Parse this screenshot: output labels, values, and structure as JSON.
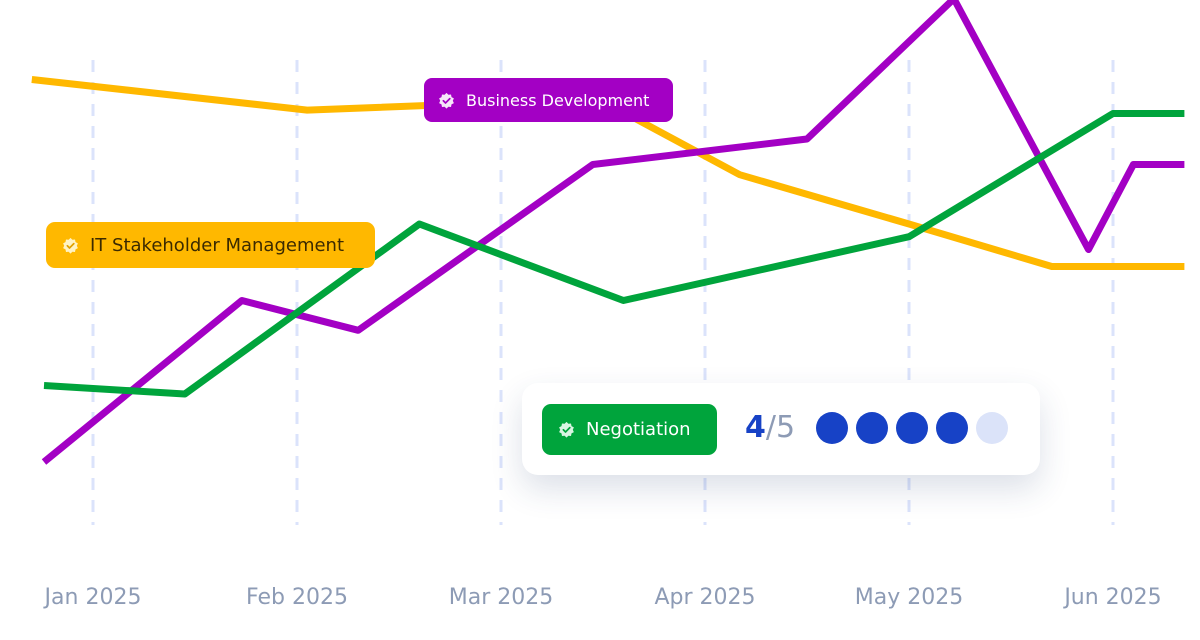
{
  "chart_data": {
    "type": "line",
    "x": [
      "Jan 2025",
      "Feb 2025",
      "Mar 2025",
      "Apr 2025",
      "May 2025",
      "Jun 2025"
    ],
    "title": "",
    "xlabel": "",
    "ylabel": "",
    "grid": "vertical-dashed",
    "series": [
      {
        "name": "IT Stakeholder Management",
        "color": "#ffb800",
        "points": [
          [
            -0.3,
            4.3
          ],
          [
            1.05,
            3.94
          ],
          [
            2.48,
            4.07
          ],
          [
            3.17,
            3.18
          ],
          [
            4.0,
            2.6
          ],
          [
            4.7,
            2.1
          ],
          [
            5.35,
            2.1
          ]
        ]
      },
      {
        "name": "Business Development",
        "color": "#a300c4",
        "points": [
          [
            -0.24,
            -0.2
          ],
          [
            0.73,
            1.7
          ],
          [
            1.3,
            1.35
          ],
          [
            2.45,
            3.3
          ],
          [
            3.5,
            3.6
          ],
          [
            4.22,
            5.25
          ],
          [
            4.88,
            2.3
          ],
          [
            5.1,
            3.3
          ],
          [
            5.35,
            3.3
          ]
        ]
      },
      {
        "name": "Negotiation",
        "color": "#00a43c",
        "points": [
          [
            -0.24,
            0.7
          ],
          [
            0.45,
            0.6
          ],
          [
            1.6,
            2.6
          ],
          [
            2.6,
            1.7
          ],
          [
            4.0,
            2.45
          ],
          [
            5.0,
            3.9
          ],
          [
            5.35,
            3.9
          ]
        ]
      }
    ]
  },
  "labels": {
    "business_development": "Business Development",
    "it_stakeholder": "IT Stakeholder Management",
    "negotiation": "Negotiation"
  },
  "rating": {
    "value": 4,
    "max": 5,
    "value_text": "4",
    "separator": "/",
    "max_text": "5"
  },
  "colors": {
    "grid": "#dbe3fb",
    "tick": "#8d9bb5",
    "accent": "#1742c6",
    "dot_off": "#dbe3f9"
  }
}
